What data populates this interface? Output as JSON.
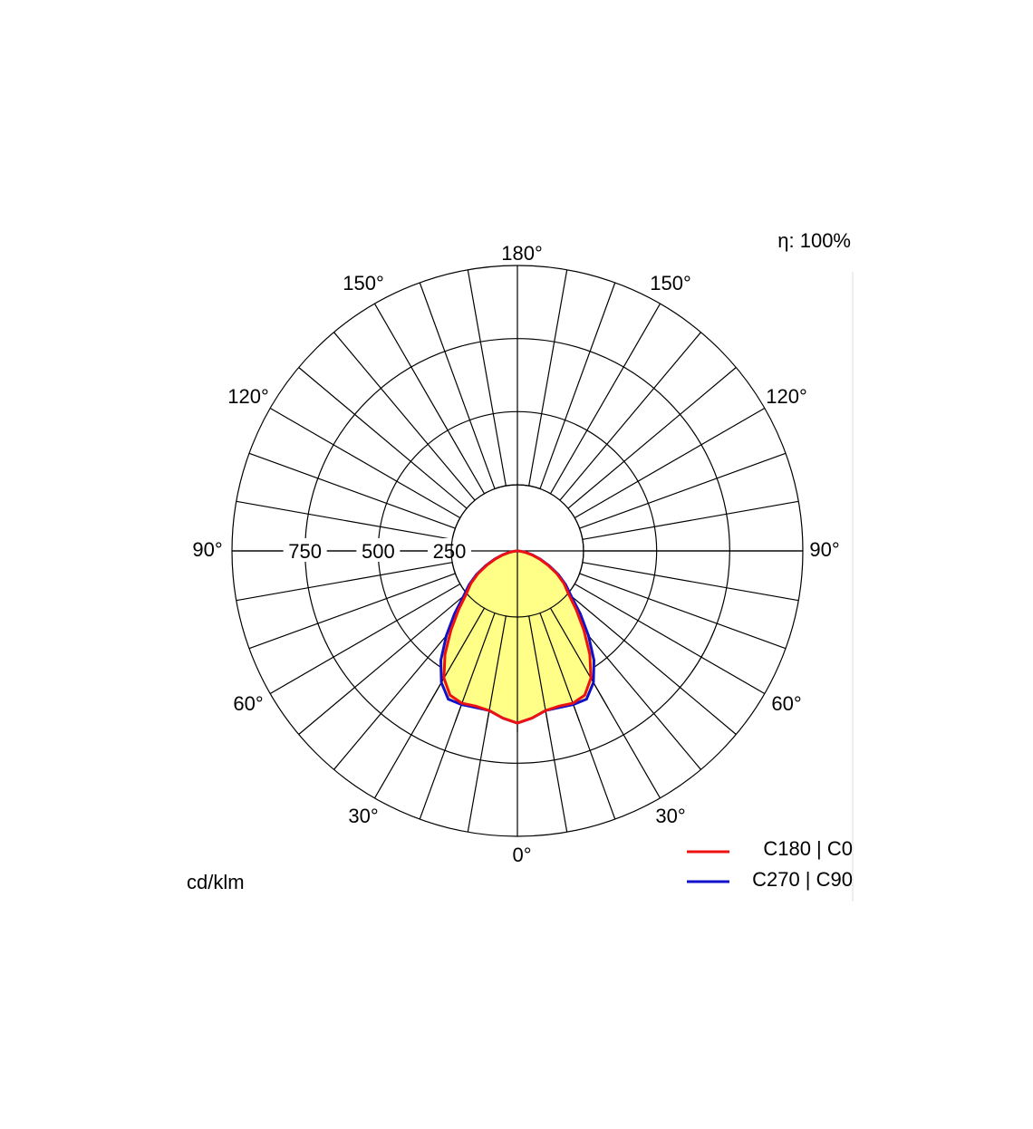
{
  "efficiency": "η: 100%",
  "unit_label": "cd/klm",
  "chart_data": {
    "type": "polar",
    "title": "",
    "angle_labels": {
      "top": "180°",
      "upper_left": "150°",
      "upper_right": "150°",
      "mid_upper_left": "120°",
      "mid_upper_right": "120°",
      "left": "90°",
      "right": "90°",
      "mid_lower_left": "60°",
      "mid_lower_right": "60°",
      "lower_left": "30°",
      "lower_right": "30°",
      "bottom": "0°"
    },
    "radial_ticks": [
      250,
      500,
      750
    ],
    "radial_tick_labels": [
      "250",
      "500",
      "750"
    ],
    "r_max": 1000,
    "colors": {
      "fill": "#ffff88",
      "c0": "#ee1111",
      "c90": "#1111cc"
    },
    "series": [
      {
        "name": "C180 | C0",
        "color": "#ee1111",
        "gamma": [
          0,
          5,
          10,
          15,
          20,
          25,
          30,
          35,
          40,
          45,
          50,
          55,
          60,
          65,
          70,
          75,
          80,
          85,
          90
        ],
        "intensity": [
          600,
          585,
          565,
          560,
          565,
          555,
          512,
          440,
          360,
          290,
          232,
          198,
          159,
          117,
          82,
          52,
          27,
          10,
          0
        ]
      },
      {
        "name": "C270 | C90",
        "color": "#1111cc",
        "gamma": [
          0,
          5,
          10,
          15,
          20,
          25,
          30,
          35,
          40,
          45,
          50,
          55,
          60,
          65,
          70,
          75,
          80,
          85,
          90
        ],
        "intensity": [
          600,
          585,
          565,
          565,
          570,
          570,
          530,
          465,
          385,
          310,
          245,
          205,
          165,
          122,
          85,
          54,
          28,
          10,
          0
        ]
      }
    ]
  }
}
